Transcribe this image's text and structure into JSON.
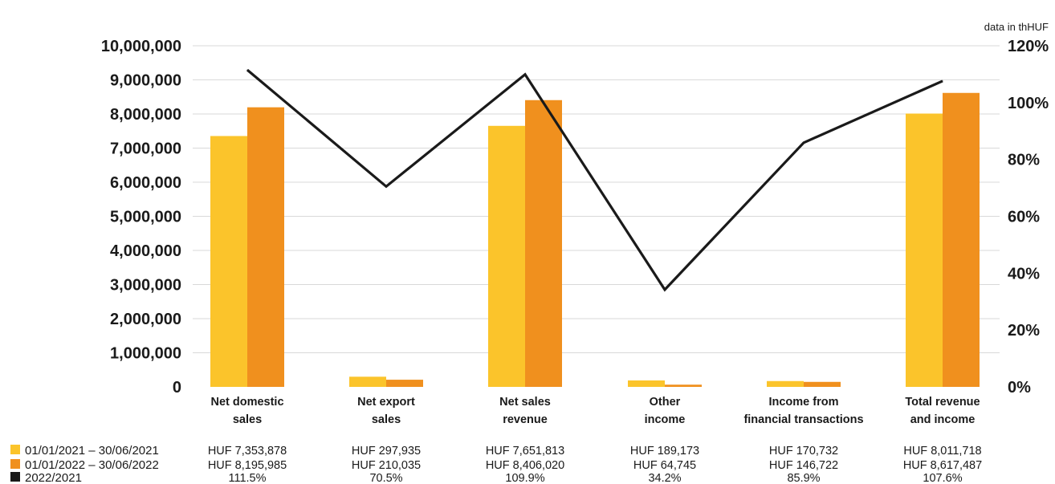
{
  "colors": {
    "series_2021": "#FBC42B",
    "series_2022": "#F0901E",
    "ratio_line": "#1a1a1a",
    "grid": "#d9d9d9"
  },
  "chart_data": {
    "type": "bar",
    "unit_note": "data in thHUF",
    "categories": [
      [
        "Net domestic",
        "sales"
      ],
      [
        "Net export",
        "sales"
      ],
      [
        "Net sales",
        "revenue"
      ],
      [
        "Other",
        "income"
      ],
      [
        "Income from",
        "financial transactions"
      ],
      [
        "Total revenue",
        "and income"
      ]
    ],
    "series": [
      {
        "name": "01/01/2021 – 30/06/2021",
        "type": "bar",
        "axis": "left",
        "values": [
          7353878,
          297935,
          7651813,
          189173,
          170732,
          8011718
        ],
        "labels": [
          "HUF 7,353,878",
          "HUF 297,935",
          "HUF 7,651,813",
          "HUF 189,173",
          "HUF  170,732",
          "HUF 8,011,718"
        ]
      },
      {
        "name": "01/01/2022 – 30/06/2022",
        "type": "bar",
        "axis": "left",
        "values": [
          8195985,
          210035,
          8406020,
          64745,
          146722,
          8617487
        ],
        "labels": [
          "HUF 8,195,985",
          "HUF 210,035",
          "HUF 8,406,020",
          "HUF 64,745",
          "HUF 146,722",
          "HUF 8,617,487"
        ]
      },
      {
        "name": "2022/2021",
        "type": "line",
        "axis": "right",
        "values": [
          111.5,
          70.5,
          109.9,
          34.2,
          85.9,
          107.6
        ],
        "labels": [
          "111.5%",
          "70.5%",
          "109.9%",
          "34.2%",
          "85.9%",
          "107.6%"
        ]
      }
    ],
    "y_left": {
      "ylim": [
        0,
        10000000
      ],
      "ticks": [
        0,
        1000000,
        2000000,
        3000000,
        4000000,
        5000000,
        6000000,
        7000000,
        8000000,
        9000000,
        10000000
      ],
      "tick_labels": [
        "0",
        "1,000,000",
        "2,000,000",
        "3,000,000",
        "4,000,000",
        "5,000,000",
        "6,000,000",
        "7,000,000",
        "8,000,000",
        "9,000,000",
        "10,000,000"
      ]
    },
    "y_right": {
      "ylim": [
        0,
        120
      ],
      "ticks": [
        0,
        20,
        40,
        60,
        80,
        100,
        120
      ],
      "tick_labels": [
        "0%",
        "20%",
        "40%",
        "60%",
        "80%",
        "100%",
        "120%"
      ]
    },
    "grid": true,
    "legend_position": "bottom-left"
  }
}
